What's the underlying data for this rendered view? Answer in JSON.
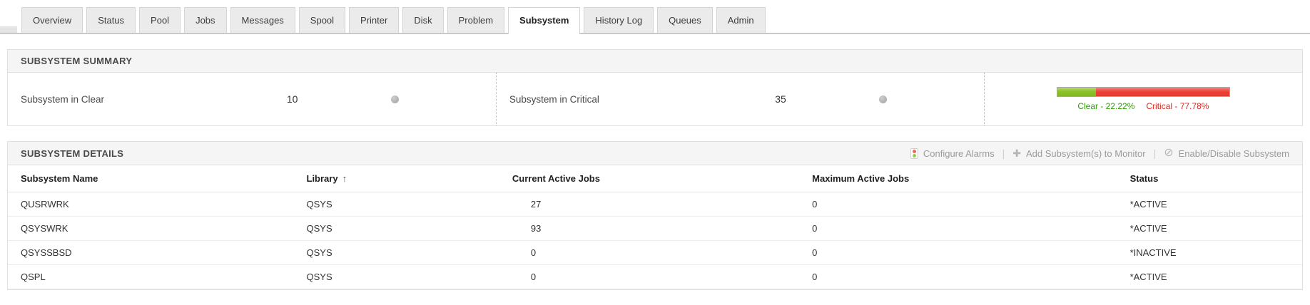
{
  "tabs": [
    {
      "label": "Overview",
      "active": false
    },
    {
      "label": "Status",
      "active": false
    },
    {
      "label": "Pool",
      "active": false
    },
    {
      "label": "Jobs",
      "active": false
    },
    {
      "label": "Messages",
      "active": false
    },
    {
      "label": "Spool",
      "active": false
    },
    {
      "label": "Printer",
      "active": false
    },
    {
      "label": "Disk",
      "active": false
    },
    {
      "label": "Problem",
      "active": false
    },
    {
      "label": "Subsystem",
      "active": true
    },
    {
      "label": "History Log",
      "active": false
    },
    {
      "label": "Queues",
      "active": false
    },
    {
      "label": "Admin",
      "active": false
    }
  ],
  "summary": {
    "title": "SUBSYSTEM SUMMARY",
    "metrics": [
      {
        "label": "Subsystem in Clear",
        "value": "10",
        "icon": "status-dot"
      },
      {
        "label": "Subsystem in Critical",
        "value": "35",
        "icon": "status-dot"
      }
    ]
  },
  "chart_data": {
    "type": "bar",
    "variant": "stacked-horizontal",
    "categories": [
      "Clear",
      "Critical"
    ],
    "values": [
      22.22,
      77.78
    ],
    "unit": "%",
    "counts": [
      10,
      35
    ],
    "segments": [
      {
        "name": "Clear",
        "percent": 22.22,
        "label": "Clear - 22.22%",
        "color": "#8cc327",
        "text_color": "#2e9e00"
      },
      {
        "name": "Critical",
        "percent": 77.78,
        "label": "Critical - 77.78%",
        "color": "#ef4136",
        "text_color": "#e0261d"
      }
    ],
    "legend_position": "below",
    "xlim": [
      0,
      100
    ]
  },
  "details": {
    "title": "SUBSYSTEM DETAILS",
    "actions": [
      {
        "label": "Configure Alarms",
        "icon": "alarm-traffic-light-icon"
      },
      {
        "label": "Add Subsystem(s) to Monitor",
        "icon": "add-plus-icon",
        "icon_glyph": "✚"
      },
      {
        "label": "Enable/Disable Subsystem",
        "icon": "disable-icon",
        "icon_glyph": "⊘"
      }
    ],
    "action_divider": "|",
    "table": {
      "columns": [
        "Subsystem Name",
        "Library",
        "Current Active Jobs",
        "Maximum Active Jobs",
        "Status"
      ],
      "sort_column": "Library",
      "sort_arrow": "↑",
      "rows": [
        {
          "name": "QUSRWRK",
          "library": "QSYS",
          "current": "27",
          "max": "0",
          "status": "*ACTIVE"
        },
        {
          "name": "QSYSWRK",
          "library": "QSYS",
          "current": "93",
          "max": "0",
          "status": "*ACTIVE"
        },
        {
          "name": "QSYSSBSD",
          "library": "QSYS",
          "current": "0",
          "max": "0",
          "status": "*INACTIVE"
        },
        {
          "name": "QSPL",
          "library": "QSYS",
          "current": "0",
          "max": "0",
          "status": "*ACTIVE"
        }
      ]
    }
  },
  "colors": {
    "clear_green_bar": "#8cc327",
    "critical_red_bar": "#ef4136",
    "clear_green_text": "#2e9e00",
    "critical_red_text": "#e0261d"
  }
}
